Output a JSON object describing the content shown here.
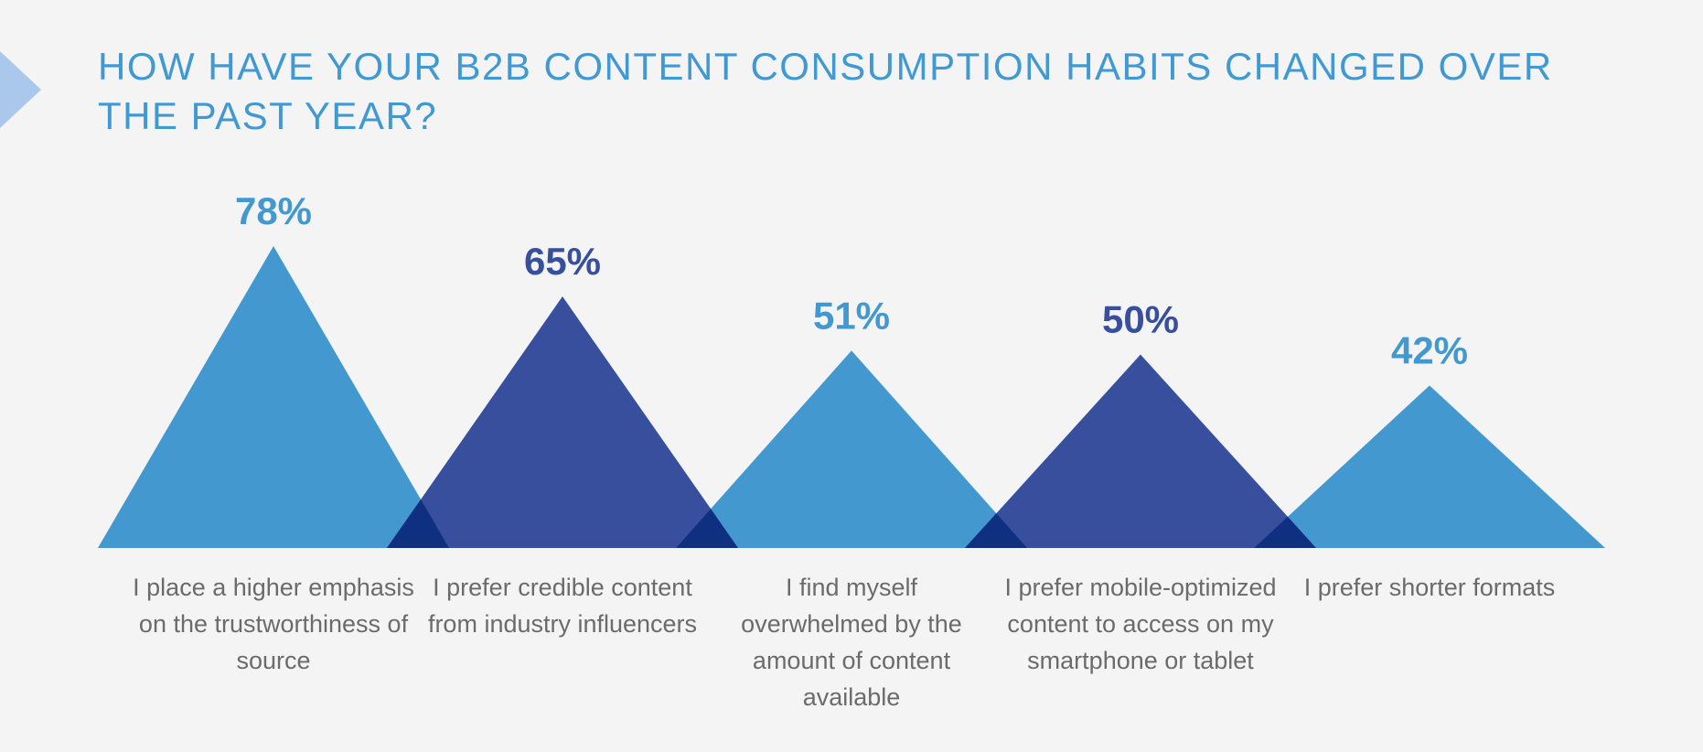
{
  "title": "HOW HAVE YOUR B2B CONTENT CONSUMPTION HABITS CHANGED OVER THE PAST YEAR?",
  "colors": {
    "light_blue": "#4398d0",
    "dark_blue": "#374f9d",
    "overlap": "#0f2f80",
    "text_gray": "#6b6b6b",
    "background": "#f4f4f4"
  },
  "chart_data": {
    "type": "bar",
    "title": "HOW HAVE YOUR B2B CONTENT CONSUMPTION HABITS CHANGED OVER THE PAST YEAR?",
    "categories": [
      "I place a higher emphasis on the trustworthiness of source",
      "I prefer credible content from industry influencers",
      "I find myself overwhelmed by the amount of content available",
      "I prefer mobile-optimized content to access on my smartphone or tablet",
      "I prefer shorter formats"
    ],
    "values": [
      78,
      65,
      51,
      50,
      42
    ],
    "value_labels": [
      "78%",
      "65%",
      "51%",
      "50%",
      "42%"
    ],
    "xlabel": "",
    "ylabel": "",
    "ylim": [
      0,
      100
    ],
    "grid": false,
    "legend": "none"
  }
}
